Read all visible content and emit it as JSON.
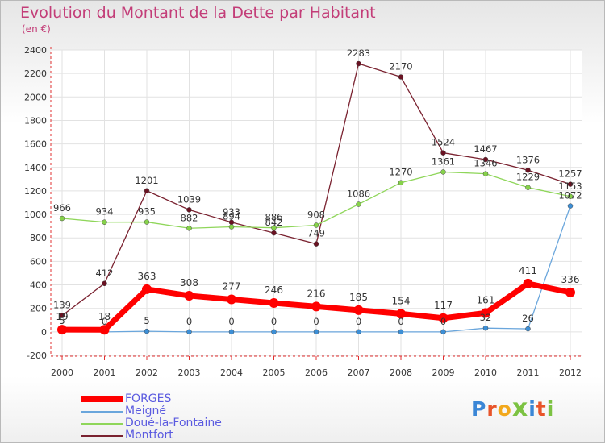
{
  "header": {
    "title": "Evolution du Montant de la Dette par Habitant",
    "unit": "(en €)"
  },
  "chart_data": {
    "type": "line",
    "title": "Evolution du Montant de la Dette par Habitant",
    "subtitle": "(en €)",
    "xlabel": "",
    "ylabel": "",
    "x": [
      2000,
      2001,
      2002,
      2003,
      2004,
      2005,
      2006,
      2007,
      2008,
      2009,
      2010,
      2011,
      2012
    ],
    "ylim": [
      -200,
      2400
    ],
    "yticks": [
      -200,
      0,
      200,
      400,
      600,
      800,
      1000,
      1200,
      1400,
      1600,
      1800,
      2000,
      2200,
      2400
    ],
    "grid": true,
    "legend_position": "bottom-left",
    "series": [
      {
        "name": "FORGES",
        "color": "#ff0000",
        "values": [
          19,
          18,
          363,
          308,
          277,
          246,
          216,
          185,
          154,
          117,
          161,
          411,
          336
        ]
      },
      {
        "name": "Meigné",
        "color": "#6aa6dc",
        "values": [
          5,
          0,
          5,
          0,
          0,
          0,
          0,
          0,
          0,
          0,
          32,
          26,
          1072
        ]
      },
      {
        "name": "Doué-la-Fontaine",
        "color": "#8fd65a",
        "values": [
          966,
          934,
          935,
          882,
          894,
          886,
          908,
          1086,
          1270,
          1361,
          1346,
          1229,
          1153
        ]
      },
      {
        "name": "Montfort",
        "color": "#7a2230",
        "values": [
          139,
          412,
          1201,
          1039,
          933,
          842,
          749,
          2283,
          2170,
          1524,
          1467,
          1376,
          1257
        ]
      }
    ]
  },
  "brand": {
    "letters": [
      "P",
      "r",
      "o",
      "x",
      "i",
      "t",
      "i"
    ],
    "colors": [
      "#3a86d6",
      "#e8542a",
      "#f2a81c",
      "#7cc242",
      "#3a86d6",
      "#e8542a",
      "#7cc242"
    ]
  }
}
